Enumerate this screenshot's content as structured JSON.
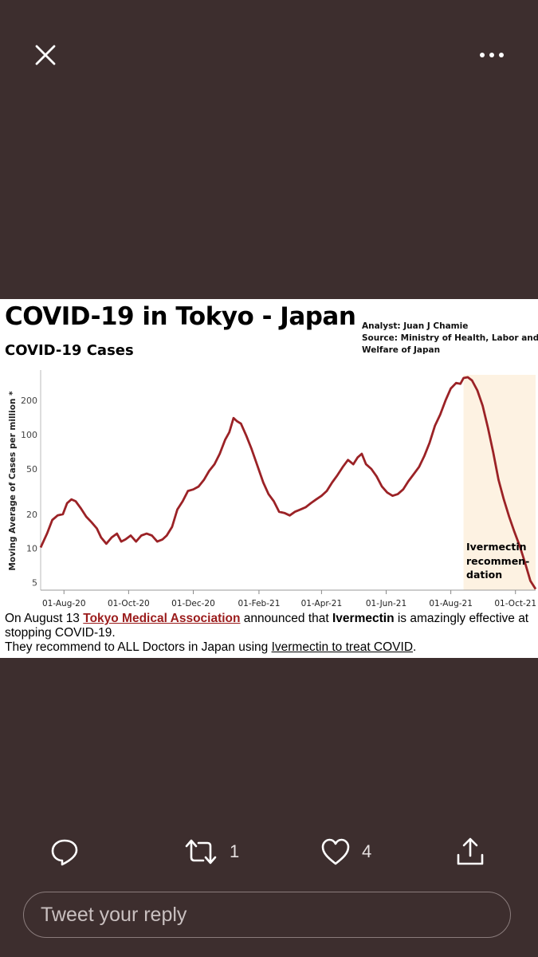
{
  "top_bar": {
    "close_icon": "close-icon",
    "more_icon": "more-horizontal-icon"
  },
  "chart_data": {
    "type": "line",
    "title": "COVID-19 in Tokyo - Japan",
    "subtitle": "COVID-19 Cases",
    "credits": [
      "Analyst: Juan J Chamie",
      "Source: Ministry of Health, Labor and",
      "Welfare of Japan"
    ],
    "ylabel": "Moving Average of Cases per million *",
    "y_scale": "log",
    "ylim": [
      4.3,
      370
    ],
    "y_ticks": [
      5,
      10,
      20,
      50,
      100,
      200
    ],
    "x_ticks": [
      "01-Aug-20",
      "01-Oct-20",
      "01-Dec-20",
      "01-Feb-21",
      "01-Apr-21",
      "01-Jun-21",
      "01-Aug-21",
      "01-Oct-21"
    ],
    "xlim": [
      "2020-07-10",
      "2021-10-20"
    ],
    "grid": false,
    "line_color": "#9b2226",
    "series": [
      {
        "points": [
          [
            "2020-07-10",
            10.2
          ],
          [
            "2020-07-16",
            13.5
          ],
          [
            "2020-07-21",
            17.8
          ],
          [
            "2020-07-26",
            19.5
          ],
          [
            "2020-07-31",
            20.0
          ],
          [
            "2020-08-04",
            25.0
          ],
          [
            "2020-08-08",
            27.0
          ],
          [
            "2020-08-12",
            26.0
          ],
          [
            "2020-08-17",
            22.5
          ],
          [
            "2020-08-22",
            19.0
          ],
          [
            "2020-08-27",
            17.0
          ],
          [
            "2020-09-01",
            15.0
          ],
          [
            "2020-09-05",
            12.5
          ],
          [
            "2020-09-10",
            11.0
          ],
          [
            "2020-09-15",
            12.5
          ],
          [
            "2020-09-20",
            13.5
          ],
          [
            "2020-09-24",
            11.5
          ],
          [
            "2020-09-28",
            12.0
          ],
          [
            "2020-10-03",
            13.0
          ],
          [
            "2020-10-08",
            11.5
          ],
          [
            "2020-10-13",
            13.0
          ],
          [
            "2020-10-18",
            13.5
          ],
          [
            "2020-10-23",
            13.0
          ],
          [
            "2020-10-28",
            11.5
          ],
          [
            "2020-11-02",
            12.0
          ],
          [
            "2020-11-06",
            13.0
          ],
          [
            "2020-11-11",
            15.5
          ],
          [
            "2020-11-16",
            22.0
          ],
          [
            "2020-11-21",
            26.0
          ],
          [
            "2020-11-26",
            32.0
          ],
          [
            "2020-12-01",
            33.0
          ],
          [
            "2020-12-06",
            35.0
          ],
          [
            "2020-12-11",
            40.0
          ],
          [
            "2020-12-16",
            48.0
          ],
          [
            "2020-12-21",
            55.0
          ],
          [
            "2020-12-26",
            68.0
          ],
          [
            "2020-12-31",
            90.0
          ],
          [
            "2021-01-04",
            105.0
          ],
          [
            "2021-01-08",
            140.0
          ],
          [
            "2021-01-11",
            132.0
          ],
          [
            "2021-01-15",
            125.0
          ],
          [
            "2021-01-20",
            98.0
          ],
          [
            "2021-01-25",
            75.0
          ],
          [
            "2021-01-30",
            55.0
          ],
          [
            "2021-02-05",
            38.0
          ],
          [
            "2021-02-10",
            30.0
          ],
          [
            "2021-02-15",
            26.0
          ],
          [
            "2021-02-20",
            21.0
          ],
          [
            "2021-02-25",
            20.5
          ],
          [
            "2021-03-02",
            19.5
          ],
          [
            "2021-03-07",
            21.0
          ],
          [
            "2021-03-12",
            22.0
          ],
          [
            "2021-03-17",
            23.0
          ],
          [
            "2021-03-22",
            25.0
          ],
          [
            "2021-03-27",
            27.0
          ],
          [
            "2021-04-01",
            29.0
          ],
          [
            "2021-04-06",
            32.0
          ],
          [
            "2021-04-11",
            38.0
          ],
          [
            "2021-04-16",
            44.0
          ],
          [
            "2021-04-21",
            52.0
          ],
          [
            "2021-04-26",
            60.0
          ],
          [
            "2021-05-01",
            55.0
          ],
          [
            "2021-05-05",
            63.0
          ],
          [
            "2021-05-09",
            68.0
          ],
          [
            "2021-05-13",
            55.0
          ],
          [
            "2021-05-18",
            50.0
          ],
          [
            "2021-05-23",
            43.0
          ],
          [
            "2021-05-28",
            35.0
          ],
          [
            "2021-06-02",
            31.0
          ],
          [
            "2021-06-07",
            29.0
          ],
          [
            "2021-06-12",
            30.0
          ],
          [
            "2021-06-17",
            33.0
          ],
          [
            "2021-06-22",
            39.0
          ],
          [
            "2021-06-27",
            45.0
          ],
          [
            "2021-07-02",
            52.0
          ],
          [
            "2021-07-07",
            65.0
          ],
          [
            "2021-07-12",
            85.0
          ],
          [
            "2021-07-17",
            120.0
          ],
          [
            "2021-07-22",
            150.0
          ],
          [
            "2021-07-27",
            200.0
          ],
          [
            "2021-08-01",
            255.0
          ],
          [
            "2021-08-06",
            285.0
          ],
          [
            "2021-08-10",
            280.0
          ],
          [
            "2021-08-13",
            315.0
          ],
          [
            "2021-08-17",
            320.0
          ],
          [
            "2021-08-21",
            300.0
          ],
          [
            "2021-08-26",
            245.0
          ],
          [
            "2021-08-31",
            180.0
          ],
          [
            "2021-09-05",
            115.0
          ],
          [
            "2021-09-10",
            70.0
          ],
          [
            "2021-09-15",
            40.0
          ],
          [
            "2021-09-20",
            27.0
          ],
          [
            "2021-09-25",
            19.0
          ],
          [
            "2021-09-30",
            14.0
          ],
          [
            "2021-10-05",
            10.5
          ],
          [
            "2021-10-10",
            7.5
          ],
          [
            "2021-10-15",
            5.2
          ],
          [
            "2021-10-20",
            4.4
          ]
        ]
      }
    ],
    "highlight": {
      "start": "2021-08-13",
      "end": "2021-10-20",
      "color": "#fdf2e2",
      "label": [
        "Ivermectin",
        "recommen-",
        "dation"
      ]
    }
  },
  "caption": {
    "line1_prefix": "On August 13 ",
    "line1_link": "Tokyo Medical Association",
    "line1_middle": " announced that ",
    "line1_bold": "Ivermectin",
    "line1_suffix": " is amazingly effective at stopping COVID-19.",
    "line2_prefix": "They recommend to ALL Doctors in Japan using ",
    "line2_link": "Ivermectin to treat COVID",
    "line2_suffix": "."
  },
  "actions": {
    "reply_icon": "reply-icon",
    "retweet_icon": "retweet-icon",
    "retweet_count": "1",
    "like_icon": "heart-icon",
    "like_count": "4",
    "share_icon": "share-icon"
  },
  "reply_box": {
    "placeholder": "Tweet your reply"
  }
}
